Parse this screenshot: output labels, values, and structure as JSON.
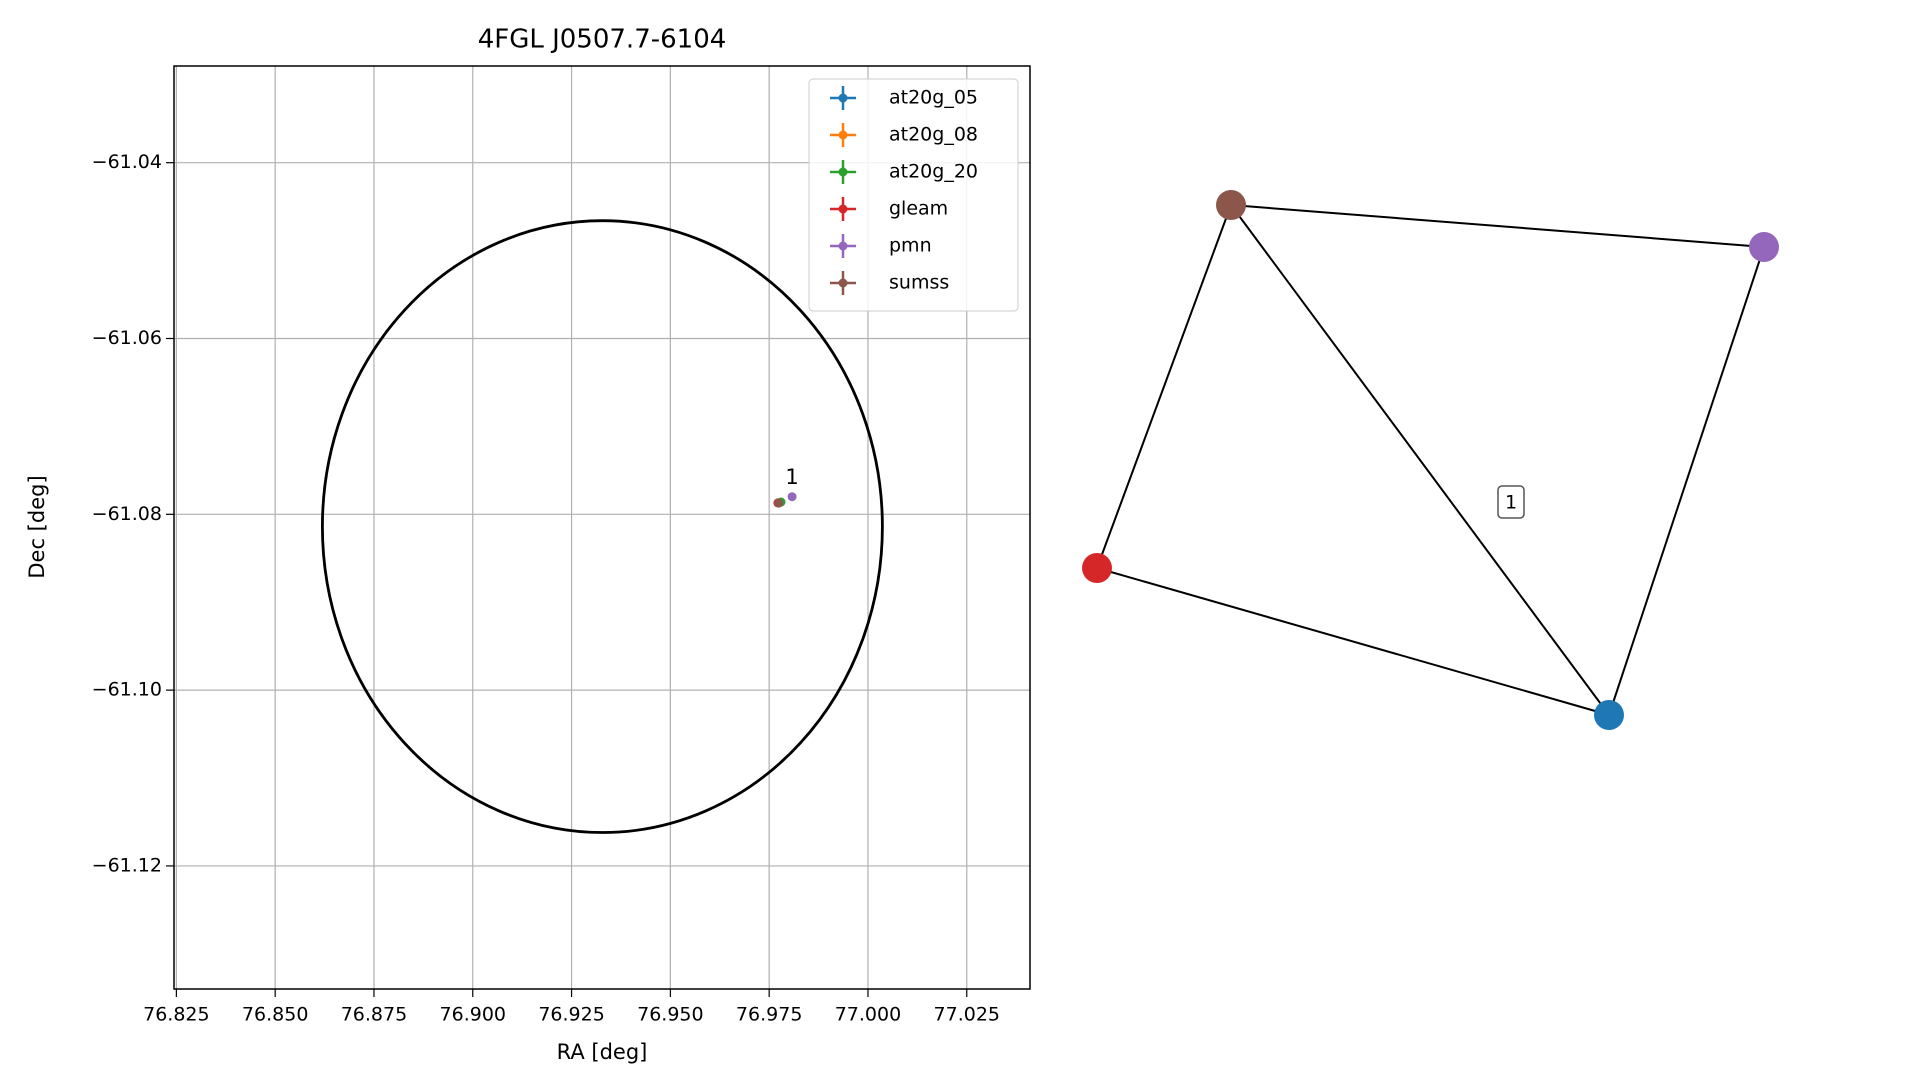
{
  "chart_data": {
    "type": "scatter",
    "title": "4FGL J0507.7-6104",
    "xlabel": "RA [deg]",
    "ylabel": "Dec [deg]",
    "xlim": [
      76.8244,
      77.041
    ],
    "ylim": [
      -61.134,
      -61.029
    ],
    "xticks": [
      76.825,
      {
        "value": 76.85,
        "label": "76.850"
      },
      76.875,
      {
        "value": 76.9,
        "label": "76.900"
      },
      76.925,
      {
        "value": 76.95,
        "label": "76.950"
      },
      76.975,
      {
        "value": 77,
        "label": "77.000"
      },
      77.025
    ],
    "yticks": [
      {
        "value": -61.04,
        "label": "−61.04"
      },
      {
        "value": -61.06,
        "label": "−61.06"
      },
      {
        "value": -61.08,
        "label": "−61.08"
      },
      {
        "value": -61.1,
        "label": "−61.10"
      },
      {
        "value": -61.12,
        "label": "−61.12"
      }
    ],
    "grid": true,
    "legend": "upper right",
    "ellipse": {
      "center": [
        76.9328,
        -61.0814
      ],
      "width": 0.1417,
      "height": 0.0696,
      "color": "#000000"
    },
    "annotations": [
      {
        "text": "1",
        "x": 76.9808,
        "y": -61.077
      }
    ],
    "series": [
      {
        "name": "at20g_05",
        "color": "#1f77b4",
        "x": [
          76.9775
        ],
        "y": [
          -61.0787
        ]
      },
      {
        "name": "at20g_08",
        "color": "#ff7f0e",
        "x": [
          76.9775
        ],
        "y": [
          -61.0787
        ]
      },
      {
        "name": "at20g_20",
        "color": "#2ca02c",
        "x": [
          76.978
        ],
        "y": [
          -61.0786
        ]
      },
      {
        "name": "gleam",
        "color": "#d62728",
        "x": [
          76.9772
        ],
        "y": [
          -61.0787
        ]
      },
      {
        "name": "pmn",
        "color": "#9467bd",
        "x": [
          76.9808
        ],
        "y": [
          -61.078
        ]
      },
      {
        "name": "sumss",
        "color": "#8c564b",
        "x": [
          76.9774
        ],
        "y": [
          -61.0787
        ]
      }
    ]
  },
  "graph": {
    "edge_label": "1"
  }
}
